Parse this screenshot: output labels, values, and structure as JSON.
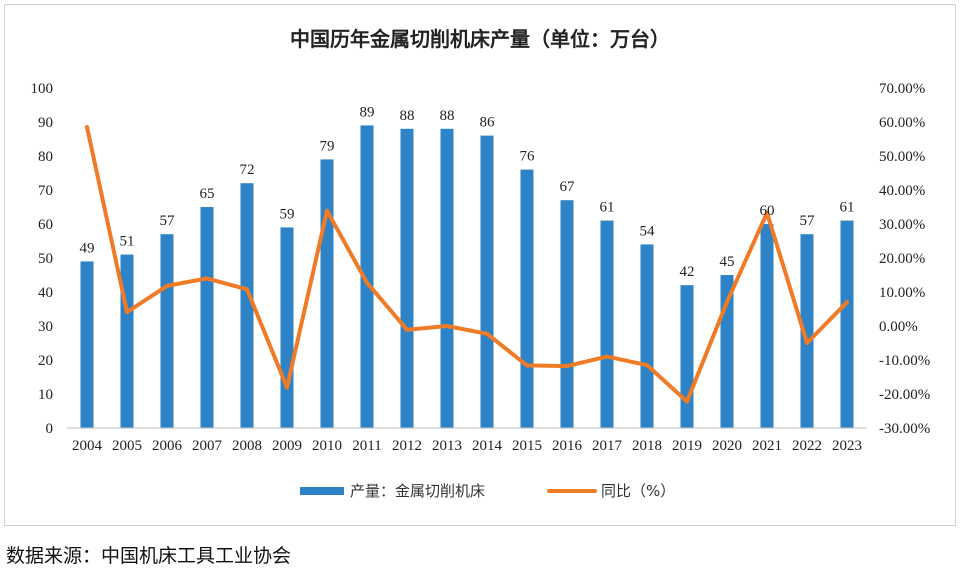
{
  "chart_data": {
    "type": "bar+line",
    "title": "中国历年金属切削机床产量（单位：万台）",
    "categories": [
      "2004",
      "2005",
      "2006",
      "2007",
      "2008",
      "2009",
      "2010",
      "2011",
      "2012",
      "2013",
      "2014",
      "2015",
      "2016",
      "2017",
      "2018",
      "2019",
      "2020",
      "2021",
      "2022",
      "2023"
    ],
    "series": [
      {
        "name": "产量：金属切削机床",
        "kind": "bar",
        "axis": "left",
        "values": [
          49,
          51,
          57,
          65,
          72,
          59,
          79,
          89,
          88,
          88,
          86,
          76,
          67,
          61,
          54,
          42,
          45,
          60,
          57,
          61
        ]
      },
      {
        "name": "同比（%）",
        "kind": "line",
        "axis": "right",
        "values": [
          58.5,
          4.1,
          11.8,
          14.0,
          10.8,
          -18.1,
          33.9,
          12.7,
          -1.1,
          0.0,
          -2.3,
          -11.6,
          -11.8,
          -9.0,
          -11.5,
          -22.2,
          7.1,
          33.3,
          -5.0,
          7.0
        ]
      }
    ],
    "ylim_left": [
      0,
      100
    ],
    "yticks_left": [
      "0",
      "10",
      "20",
      "30",
      "40",
      "50",
      "60",
      "70",
      "80",
      "90",
      "100"
    ],
    "ylim_right": [
      -30,
      70
    ],
    "yticks_right": [
      "-30.00%",
      "-20.00%",
      "-10.00%",
      "0.00%",
      "10.00%",
      "20.00%",
      "30.00%",
      "40.00%",
      "50.00%",
      "60.00%",
      "70.00%"
    ],
    "legend_position": "bottom",
    "colors": {
      "bar": "#2e83c6",
      "line": "#f07b26",
      "text": "#222222",
      "axis": "#bfbfbf"
    }
  },
  "source_note": "数据来源：中国机床工具工业协会"
}
